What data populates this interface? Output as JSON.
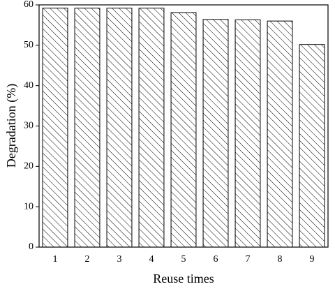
{
  "chart_data": {
    "type": "bar",
    "x_label": "Reuse times",
    "y_label": "Degradation (%)",
    "categories": [
      "1",
      "2",
      "3",
      "4",
      "5",
      "6",
      "7",
      "8",
      "9"
    ],
    "values": [
      59.2,
      59.2,
      59.2,
      59.2,
      58.1,
      56.4,
      56.3,
      56.0,
      50.2
    ],
    "color": "#000000",
    "ylim": [
      0,
      60
    ],
    "yticks": [
      0,
      10,
      20,
      30,
      40,
      50,
      60
    ],
    "grid": false
  }
}
